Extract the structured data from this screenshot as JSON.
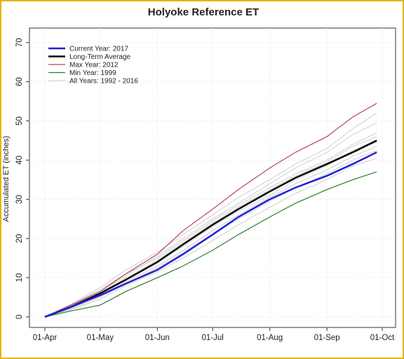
{
  "chart_data": {
    "type": "line",
    "title": "Holyoke Reference ET",
    "ylabel": "Accumulated ET (inches)",
    "x": [
      "01-Apr",
      "15-Apr",
      "01-May",
      "15-May",
      "01-Jun",
      "15-Jun",
      "01-Jul",
      "15-Jul",
      "01-Aug",
      "15-Aug",
      "01-Sep",
      "15-Sep",
      "28-Sep"
    ],
    "xlim": [
      "01-Apr",
      "01-Oct"
    ],
    "xticks": [
      "01-Apr",
      "01-May",
      "01-Jun",
      "01-Jul",
      "01-Aug",
      "01-Sep",
      "01-Oct"
    ],
    "ylim": [
      -2.7,
      73.7
    ],
    "yticks": [
      0,
      10,
      20,
      30,
      40,
      50,
      60,
      70
    ],
    "grid": true,
    "legend": "upper left",
    "series": [
      {
        "name": "Current Year: 2017",
        "color": "#1f1fdb",
        "width": 2.5,
        "values": [
          0,
          2.5,
          5.5,
          8.5,
          12,
          16,
          21,
          25.5,
          30,
          33,
          36,
          39,
          42
        ]
      },
      {
        "name": "Long-Term Average",
        "color": "#000000",
        "width": 2.5,
        "values": [
          0,
          2.5,
          6,
          9.5,
          14,
          18.5,
          23.5,
          27.5,
          32,
          35.5,
          39,
          42,
          45
        ]
      },
      {
        "name": "Max Year: 2012",
        "color": "#b5485e",
        "width": 1.2,
        "values": [
          0,
          3,
          6.5,
          11,
          16,
          22,
          27.5,
          32.5,
          38,
          42,
          46,
          51,
          54.5
        ]
      },
      {
        "name": "Min Year: 1999",
        "color": "#2e7d2e",
        "width": 1.2,
        "values": [
          0,
          1.5,
          3,
          6.5,
          10,
          13,
          17,
          21,
          25.5,
          29,
          32.5,
          35,
          37
        ]
      },
      {
        "name": "All Years: 1992 - 2016",
        "color": "#cfcfcf",
        "width": 1,
        "values": [
          [
            0,
            2.8,
            6.5,
            10.5,
            15.5,
            20,
            25,
            29,
            34,
            38,
            42,
            46.5,
            49.5
          ],
          [
            0,
            2.2,
            5.5,
            9,
            13,
            17,
            22,
            26,
            30.5,
            34,
            37.5,
            41,
            43.5
          ],
          [
            0,
            3,
            7,
            11,
            15,
            19.5,
            24.5,
            28.5,
            33,
            36.5,
            40,
            44,
            47
          ],
          [
            0,
            2,
            5,
            8.5,
            12.5,
            16.5,
            21,
            25,
            29.5,
            33,
            36.5,
            40,
            42.5
          ],
          [
            0,
            2.6,
            6.2,
            10,
            14.5,
            19,
            24,
            28,
            32.5,
            36,
            39.5,
            43.5,
            46
          ],
          [
            0,
            3.2,
            7.5,
            12,
            16.5,
            21,
            26,
            30.5,
            35,
            39,
            43,
            48,
            52
          ],
          [
            0,
            1.8,
            4.5,
            8,
            11.5,
            15,
            19.5,
            23.5,
            28,
            31.5,
            35,
            38.5,
            40.5
          ],
          [
            0,
            2.4,
            5.8,
            9.5,
            14,
            18,
            23,
            27,
            31,
            35,
            38.5,
            42.5,
            44.5
          ]
        ]
      }
    ]
  }
}
